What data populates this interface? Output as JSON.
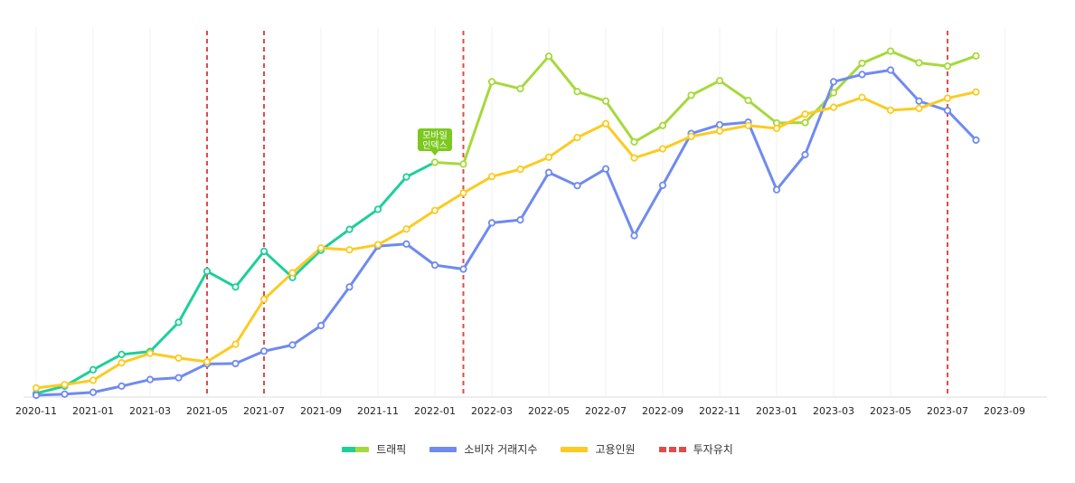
{
  "chart_data": {
    "type": "line",
    "title": "",
    "xlabel": "",
    "ylabel": "",
    "x_ticks": [
      "2020-11",
      "2021-01",
      "2021-03",
      "2021-05",
      "2021-07",
      "2021-09",
      "2021-11",
      "2022-01",
      "2022-03",
      "2022-05",
      "2022-07",
      "2022-09",
      "2022-11",
      "2023-01",
      "2023-03",
      "2023-05",
      "2023-07",
      "2023-09"
    ],
    "x": [
      "2020-11",
      "2020-12",
      "2021-01",
      "2021-02",
      "2021-03",
      "2021-04",
      "2021-05",
      "2021-06",
      "2021-07",
      "2021-08",
      "2021-09",
      "2021-10",
      "2021-11",
      "2021-12",
      "2022-01",
      "2022-02",
      "2022-03",
      "2022-04",
      "2022-05",
      "2022-06",
      "2022-07",
      "2022-08",
      "2022-09",
      "2022-10",
      "2022-11",
      "2022-12",
      "2023-01",
      "2023-02",
      "2023-03",
      "2023-04",
      "2023-05",
      "2023-06",
      "2023-07",
      "2023-08"
    ],
    "ylim": [
      0,
      100
    ],
    "y_axis_labels_shown": false,
    "grid": "vertical",
    "legend_position": "bottom-center",
    "series": [
      {
        "name": "트래픽",
        "colors": [
          "#1ecf9a",
          "#a6d93c"
        ],
        "color_split_at": "2022-01",
        "values": [
          1,
          3,
          7.5,
          11.7,
          12.5,
          20.5,
          34.5,
          30.2,
          40,
          32.8,
          40.3,
          46,
          51.5,
          60.4,
          64.4,
          63.9,
          86.5,
          84.6,
          93.5,
          83.8,
          81.2,
          70,
          74.5,
          82.8,
          86.8,
          81.4,
          75.2,
          75.3,
          83.5,
          91.6,
          94.9,
          91.7,
          90.8,
          93.6
        ]
      },
      {
        "name": "소비자 거래지수",
        "colors": [
          "#6f8af0"
        ],
        "values": [
          0.5,
          0.8,
          1.3,
          3,
          4.8,
          5.3,
          9.1,
          9.2,
          12.6,
          14.3,
          19.6,
          30.2,
          41.4,
          42,
          36.2,
          35.1,
          47.8,
          48.6,
          61.6,
          58,
          62.6,
          44.3,
          58.1,
          72.3,
          74.7,
          75.4,
          56.9,
          66.5,
          86.5,
          88.5,
          89.7,
          81.2,
          78.6,
          70.5
        ]
      },
      {
        "name": "고용인원",
        "colors": [
          "#fbcb22"
        ],
        "values": [
          2.5,
          3.4,
          4.6,
          9.4,
          12,
          10.7,
          9.7,
          14.5,
          26.8,
          34.1,
          40.9,
          40.4,
          41.8,
          46.1,
          51.2,
          56,
          60.5,
          62.5,
          65.8,
          71.2,
          75,
          65.6,
          68.1,
          71.5,
          73,
          74.5,
          73.7,
          77.6,
          79.5,
          82.2,
          78.7,
          79.2,
          82,
          83.7
        ]
      }
    ],
    "markers": {
      "name": "투자유치",
      "color": "#e04b4b",
      "x": [
        "2021-05",
        "2021-07",
        "2022-02",
        "2023-07"
      ]
    },
    "annotation": {
      "text_line1": "모바일",
      "text_line2": "인덱스",
      "at_x": "2022-01",
      "color": "#7cc81f"
    }
  }
}
